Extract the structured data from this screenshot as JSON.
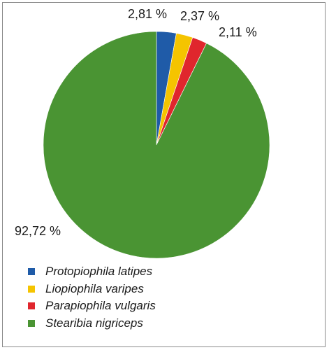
{
  "chart_data": {
    "type": "pie",
    "title": "",
    "slices": [
      {
        "label": "Protopiophila latipes",
        "value": 2.81,
        "display": "2,81 %",
        "color": "#1f5ba8"
      },
      {
        "label": "Liopiophila varipes",
        "value": 2.37,
        "display": "2,37 %",
        "color": "#f5c400"
      },
      {
        "label": "Parapiophila vulgaris",
        "value": 2.11,
        "display": "2,11 %",
        "color": "#e0262d"
      },
      {
        "label": "Stearibia nigriceps",
        "value": 92.72,
        "display": "92,72 %",
        "color": "#4a9433"
      }
    ],
    "legend_position": "bottom-left",
    "start_angle": "12 o'clock, clockwise"
  }
}
